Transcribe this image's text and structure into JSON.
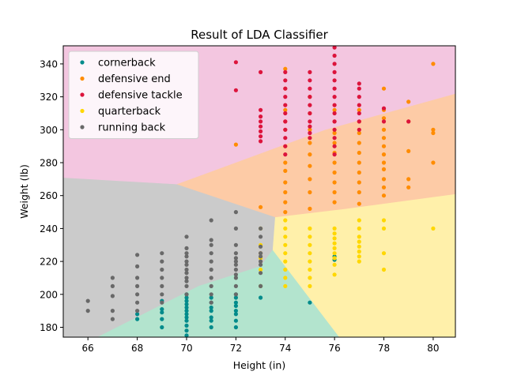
{
  "chart_data": {
    "type": "scatter",
    "title": "Result of LDA Classifier",
    "xlabel": "Height (in)",
    "ylabel": "Weight (lb)",
    "xlim": [
      65,
      80.9
    ],
    "ylim": [
      174,
      351
    ],
    "xticks": [
      66,
      68,
      70,
      72,
      74,
      76,
      78,
      80
    ],
    "yticks": [
      180,
      200,
      220,
      240,
      260,
      280,
      300,
      320,
      340
    ],
    "legend_position": "upper-left",
    "region_colors": {
      "cornerback": "#b3e4ce",
      "defensive end": "#fdcba6",
      "defensive tackle": "#f3c6e0",
      "quarterback": "#fff0aa",
      "running back": "#cbcbcb"
    },
    "region_polygons": {
      "running back": [
        [
          65,
          174
        ],
        [
          65,
          271
        ],
        [
          69.6,
          267
        ],
        [
          73.3,
          248.5
        ],
        [
          73.6,
          247
        ],
        [
          73.5,
          227
        ],
        [
          73,
          217
        ],
        [
          70.5,
          205
        ],
        [
          66.4,
          174
        ]
      ],
      "cornerback": [
        [
          66.4,
          174
        ],
        [
          70.5,
          205
        ],
        [
          73,
          217
        ],
        [
          73.5,
          227
        ],
        [
          76.2,
          174
        ]
      ],
      "quarterback": [
        [
          76.2,
          174
        ],
        [
          73.5,
          227
        ],
        [
          73.6,
          247
        ],
        [
          76.4,
          252
        ],
        [
          80.9,
          261
        ],
        [
          80.9,
          174
        ]
      ],
      "defensive end": [
        [
          69.6,
          267
        ],
        [
          73.3,
          248.5
        ],
        [
          73.6,
          247
        ],
        [
          76.4,
          252
        ],
        [
          80.9,
          261
        ],
        [
          80.9,
          322
        ],
        [
          75.6,
          300
        ]
      ],
      "defensive tackle": [
        [
          65,
          271
        ],
        [
          69.6,
          267
        ],
        [
          75.6,
          300
        ],
        [
          80.9,
          322
        ],
        [
          80.9,
          351
        ],
        [
          65,
          351
        ]
      ]
    },
    "series": [
      {
        "name": "cornerback",
        "color": "#008b8b",
        "points": [
          [
            68,
            185
          ],
          [
            68,
            188
          ],
          [
            69,
            180
          ],
          [
            69,
            185
          ],
          [
            69,
            189
          ],
          [
            69,
            191
          ],
          [
            69,
            196
          ],
          [
            70,
            175
          ],
          [
            70,
            178
          ],
          [
            70,
            181
          ],
          [
            70,
            184
          ],
          [
            70,
            186
          ],
          [
            70,
            188
          ],
          [
            70,
            190
          ],
          [
            70,
            192
          ],
          [
            70,
            194
          ],
          [
            70,
            196
          ],
          [
            70,
            198
          ],
          [
            70,
            200
          ],
          [
            71,
            180
          ],
          [
            71,
            184
          ],
          [
            71,
            186
          ],
          [
            71,
            190
          ],
          [
            71,
            192
          ],
          [
            71,
            195
          ],
          [
            71,
            198
          ],
          [
            72,
            180
          ],
          [
            72,
            184
          ],
          [
            72,
            188
          ],
          [
            72,
            190
          ],
          [
            72,
            193
          ],
          [
            72,
            195
          ],
          [
            72,
            198
          ],
          [
            72,
            200
          ],
          [
            73,
            198
          ],
          [
            73,
            205
          ],
          [
            75,
            195
          ],
          [
            76,
            221
          ],
          [
            76,
            223
          ]
        ]
      },
      {
        "name": "defensive end",
        "color": "#ff8c00",
        "points": [
          [
            72,
            291
          ],
          [
            73,
            253
          ],
          [
            73,
            225
          ],
          [
            74,
            250
          ],
          [
            74,
            256
          ],
          [
            74,
            262
          ],
          [
            74,
            268
          ],
          [
            74,
            275
          ],
          [
            74,
            280
          ],
          [
            74,
            290
          ],
          [
            74,
            300
          ],
          [
            74,
            305
          ],
          [
            74,
            312
          ],
          [
            74,
            325
          ],
          [
            74,
            337
          ],
          [
            75,
            252
          ],
          [
            75,
            262
          ],
          [
            75,
            270
          ],
          [
            75,
            278
          ],
          [
            75,
            285
          ],
          [
            75,
            292
          ],
          [
            75,
            300
          ],
          [
            75,
            310
          ],
          [
            75,
            320
          ],
          [
            76,
            256
          ],
          [
            76,
            262
          ],
          [
            76,
            268
          ],
          [
            76,
            274
          ],
          [
            76,
            280
          ],
          [
            76,
            286
          ],
          [
            76,
            292
          ],
          [
            76,
            298
          ],
          [
            76,
            305
          ],
          [
            76,
            312
          ],
          [
            77,
            255
          ],
          [
            77,
            262
          ],
          [
            77,
            268
          ],
          [
            77,
            274
          ],
          [
            77,
            280
          ],
          [
            77,
            286
          ],
          [
            77,
            292
          ],
          [
            77,
            298
          ],
          [
            77,
            305
          ],
          [
            77,
            312
          ],
          [
            78,
            260
          ],
          [
            78,
            265
          ],
          [
            78,
            270
          ],
          [
            78,
            276
          ],
          [
            78,
            280
          ],
          [
            78,
            285
          ],
          [
            78,
            290
          ],
          [
            78,
            295
          ],
          [
            78,
            300
          ],
          [
            78,
            307
          ],
          [
            78,
            312
          ],
          [
            78,
            325
          ],
          [
            79,
            265
          ],
          [
            79,
            270
          ],
          [
            79,
            287
          ],
          [
            79,
            305
          ],
          [
            79,
            317
          ],
          [
            80,
            280
          ],
          [
            80,
            298
          ],
          [
            80,
            300
          ],
          [
            80,
            340
          ]
        ]
      },
      {
        "name": "defensive tackle",
        "color": "#dc143c",
        "points": [
          [
            72,
            341
          ],
          [
            72,
            324
          ],
          [
            73,
            293
          ],
          [
            73,
            296
          ],
          [
            73,
            299
          ],
          [
            73,
            302
          ],
          [
            73,
            305
          ],
          [
            73,
            308
          ],
          [
            73,
            312
          ],
          [
            73,
            335
          ],
          [
            74,
            285
          ],
          [
            74,
            290
          ],
          [
            74,
            295
          ],
          [
            74,
            300
          ],
          [
            74,
            305
          ],
          [
            74,
            310
          ],
          [
            74,
            315
          ],
          [
            74,
            320
          ],
          [
            74,
            325
          ],
          [
            74,
            330
          ],
          [
            74,
            335
          ],
          [
            75,
            295
          ],
          [
            75,
            298
          ],
          [
            75,
            302
          ],
          [
            75,
            305
          ],
          [
            75,
            310
          ],
          [
            75,
            315
          ],
          [
            75,
            320
          ],
          [
            75,
            325
          ],
          [
            75,
            330
          ],
          [
            75,
            335
          ],
          [
            76,
            285
          ],
          [
            76,
            290
          ],
          [
            76,
            295
          ],
          [
            76,
            300
          ],
          [
            76,
            305
          ],
          [
            76,
            310
          ],
          [
            76,
            315
          ],
          [
            76,
            320
          ],
          [
            76,
            325
          ],
          [
            76,
            330
          ],
          [
            76,
            335
          ],
          [
            76,
            340
          ],
          [
            76,
            345
          ],
          [
            76,
            350
          ],
          [
            77,
            300
          ],
          [
            77,
            305
          ],
          [
            77,
            310
          ],
          [
            77,
            315
          ],
          [
            77,
            320
          ],
          [
            77,
            325
          ],
          [
            77,
            328
          ],
          [
            78,
            305
          ],
          [
            78,
            313
          ],
          [
            79,
            305
          ]
        ]
      },
      {
        "name": "quarterback",
        "color": "#ffd700",
        "points": [
          [
            73,
            205
          ],
          [
            73,
            215
          ],
          [
            73,
            222
          ],
          [
            73,
            230
          ],
          [
            73,
            240
          ],
          [
            74,
            205
          ],
          [
            74,
            210
          ],
          [
            74,
            215
          ],
          [
            74,
            220
          ],
          [
            74,
            225
          ],
          [
            74,
            230
          ],
          [
            74,
            235
          ],
          [
            74,
            240
          ],
          [
            74,
            245
          ],
          [
            75,
            205
          ],
          [
            75,
            210
          ],
          [
            75,
            215
          ],
          [
            75,
            220
          ],
          [
            75,
            225
          ],
          [
            75,
            230
          ],
          [
            75,
            235
          ],
          [
            75,
            240
          ],
          [
            76,
            212
          ],
          [
            76,
            218
          ],
          [
            76,
            222
          ],
          [
            76,
            225
          ],
          [
            76,
            228
          ],
          [
            76,
            231
          ],
          [
            76,
            234
          ],
          [
            76,
            237
          ],
          [
            76,
            240
          ],
          [
            77,
            220
          ],
          [
            77,
            223
          ],
          [
            77,
            226
          ],
          [
            77,
            229
          ],
          [
            77,
            232
          ],
          [
            77,
            235
          ],
          [
            77,
            240
          ],
          [
            77,
            245
          ],
          [
            78,
            215
          ],
          [
            78,
            225
          ],
          [
            78,
            240
          ],
          [
            78,
            245
          ],
          [
            80,
            240
          ]
        ]
      },
      {
        "name": "running back",
        "color": "#696969",
        "points": [
          [
            66,
            190
          ],
          [
            66,
            196
          ],
          [
            67,
            185
          ],
          [
            67,
            190
          ],
          [
            67,
            199
          ],
          [
            67,
            205
          ],
          [
            67,
            210
          ],
          [
            68,
            190
          ],
          [
            68,
            195
          ],
          [
            68,
            200
          ],
          [
            68,
            205
          ],
          [
            68,
            210
          ],
          [
            68,
            217
          ],
          [
            68,
            224
          ],
          [
            69,
            195
          ],
          [
            69,
            200
          ],
          [
            69,
            205
          ],
          [
            69,
            210
          ],
          [
            69,
            215
          ],
          [
            69,
            220
          ],
          [
            69,
            225
          ],
          [
            70,
            200
          ],
          [
            70,
            205
          ],
          [
            70,
            208
          ],
          [
            70,
            210
          ],
          [
            70,
            213
          ],
          [
            70,
            215
          ],
          [
            70,
            218
          ],
          [
            70,
            220
          ],
          [
            70,
            223
          ],
          [
            70,
            225
          ],
          [
            70,
            228
          ],
          [
            70,
            235
          ],
          [
            71,
            195
          ],
          [
            71,
            200
          ],
          [
            71,
            205
          ],
          [
            71,
            210
          ],
          [
            71,
            215
          ],
          [
            71,
            220
          ],
          [
            71,
            225
          ],
          [
            71,
            230
          ],
          [
            71,
            233
          ],
          [
            71,
            245
          ],
          [
            72,
            200
          ],
          [
            72,
            205
          ],
          [
            72,
            210
          ],
          [
            72,
            212
          ],
          [
            72,
            215
          ],
          [
            72,
            218
          ],
          [
            72,
            220
          ],
          [
            72,
            222
          ],
          [
            72,
            225
          ],
          [
            72,
            230
          ],
          [
            72,
            240
          ],
          [
            72,
            250
          ],
          [
            73,
            205
          ],
          [
            73,
            213
          ],
          [
            73,
            218
          ],
          [
            73,
            220
          ],
          [
            73,
            223
          ],
          [
            73,
            225
          ],
          [
            73,
            229
          ],
          [
            73,
            235
          ],
          [
            73,
            240
          ]
        ]
      }
    ]
  }
}
